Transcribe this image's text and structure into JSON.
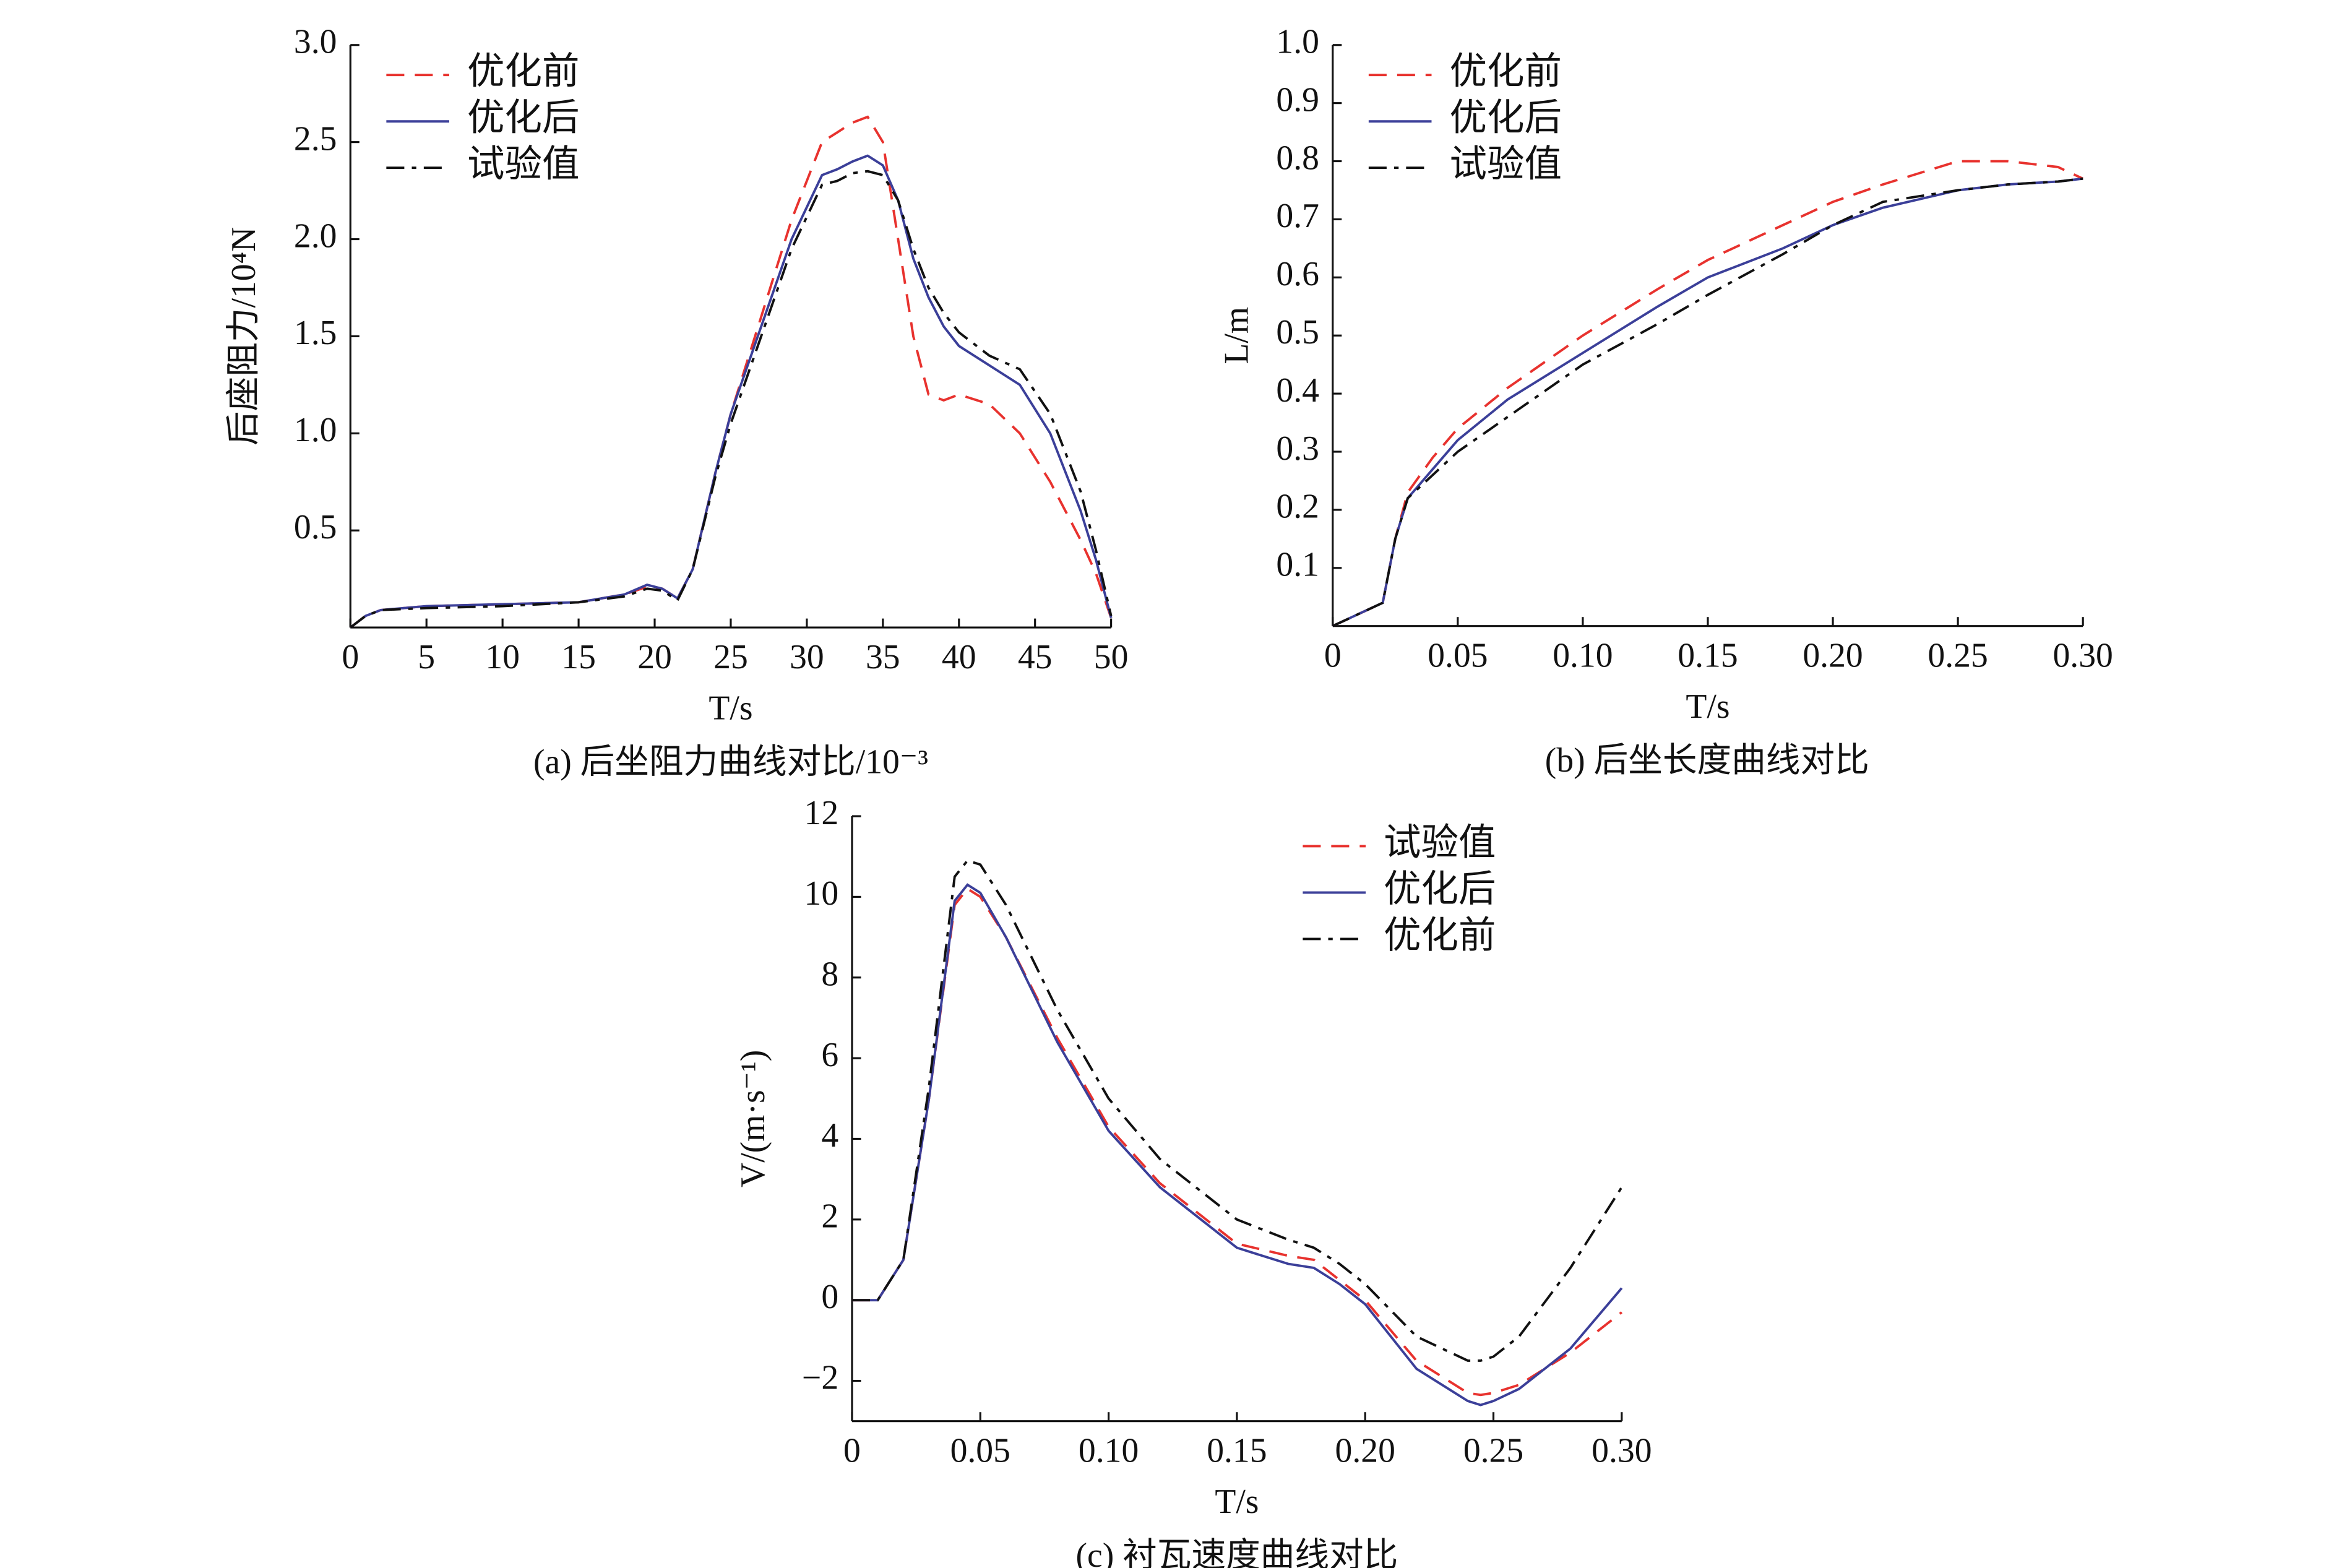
{
  "chart_data": [
    {
      "type": "line",
      "title": "(a) 后坐阻力曲线对比/10⁻³",
      "xlabel": "T/s",
      "ylabel": "后座阻力/10⁴N",
      "xlim": [
        0,
        50
      ],
      "ylim": [
        0,
        3
      ],
      "xticks": [
        0,
        5,
        10,
        15,
        20,
        25,
        30,
        35,
        40,
        45,
        50
      ],
      "yticks": [
        0.5,
        {
          "value": 1,
          "label": "1.0"
        },
        1.5,
        {
          "value": 2,
          "label": "2.0"
        },
        2.5,
        {
          "value": 3,
          "label": "3.0"
        }
      ],
      "legend": "upper left",
      "x": [
        0,
        1,
        2,
        5,
        10,
        15,
        18,
        19.5,
        20.5,
        21.5,
        22.5,
        24,
        25,
        27,
        29,
        31,
        32,
        33,
        34,
        35,
        36,
        37,
        38,
        39,
        40,
        42,
        44,
        46,
        48,
        49,
        50
      ],
      "series": [
        {
          "name": "优化前",
          "color": "#e8322e",
          "dash": "dashed",
          "values": [
            0,
            0.06,
            0.09,
            0.11,
            0.12,
            0.13,
            0.17,
            0.21,
            0.2,
            0.15,
            0.3,
            0.8,
            1.1,
            1.6,
            2.1,
            2.5,
            2.55,
            2.6,
            2.63,
            2.5,
            2.0,
            1.5,
            1.2,
            1.17,
            1.2,
            1.15,
            1.0,
            0.75,
            0.45,
            0.28,
            0.05
          ]
        },
        {
          "name": "优化后",
          "color": "#3b3f99",
          "dash": "solid",
          "values": [
            0,
            0.06,
            0.09,
            0.11,
            0.12,
            0.13,
            0.17,
            0.22,
            0.2,
            0.15,
            0.3,
            0.8,
            1.1,
            1.55,
            2.0,
            2.33,
            2.36,
            2.4,
            2.43,
            2.38,
            2.2,
            1.9,
            1.7,
            1.55,
            1.45,
            1.35,
            1.25,
            1.0,
            0.6,
            0.35,
            0.05
          ]
        },
        {
          "name": "试验值",
          "color": "#111111",
          "dash": "dashdot",
          "values": [
            0,
            0.06,
            0.09,
            0.1,
            0.11,
            0.13,
            0.16,
            0.2,
            0.19,
            0.14,
            0.3,
            0.78,
            1.05,
            1.5,
            1.95,
            2.28,
            2.3,
            2.34,
            2.35,
            2.33,
            2.2,
            1.95,
            1.75,
            1.62,
            1.52,
            1.4,
            1.33,
            1.1,
            0.7,
            0.4,
            0.06
          ]
        }
      ]
    },
    {
      "type": "line",
      "title": "(b) 后坐长度曲线对比",
      "xlabel": "T/s",
      "ylabel": "L/m",
      "xlim": [
        0,
        0.3
      ],
      "ylim": [
        0,
        1
      ],
      "xticks": [
        0,
        0.05,
        {
          "value": 0.1,
          "label": "0.10"
        },
        0.15,
        {
          "value": 0.2,
          "label": "0.20"
        },
        0.25,
        {
          "value": 0.3,
          "label": "0.30"
        }
      ],
      "yticks": [
        0.1,
        0.2,
        0.3,
        0.4,
        0.5,
        0.6,
        0.7,
        0.8,
        0.9,
        {
          "value": 1,
          "label": "1.0"
        }
      ],
      "legend": "upper left",
      "x": [
        0,
        0.01,
        0.02,
        0.025,
        0.03,
        0.04,
        0.05,
        0.07,
        0.1,
        0.13,
        0.15,
        0.18,
        0.2,
        0.22,
        0.25,
        0.27,
        0.29,
        0.3
      ],
      "series": [
        {
          "name": "优化前",
          "color": "#e8322e",
          "dash": "dashed",
          "values": [
            0,
            0.02,
            0.04,
            0.15,
            0.23,
            0.29,
            0.34,
            0.41,
            0.5,
            0.58,
            0.63,
            0.69,
            0.73,
            0.76,
            0.8,
            0.8,
            0.79,
            0.77
          ]
        },
        {
          "name": "优化后",
          "color": "#3b3f99",
          "dash": "solid",
          "values": [
            0,
            0.02,
            0.04,
            0.15,
            0.22,
            0.27,
            0.32,
            0.39,
            0.47,
            0.55,
            0.6,
            0.65,
            0.69,
            0.72,
            0.75,
            0.76,
            0.765,
            0.77
          ]
        },
        {
          "name": "试验值",
          "color": "#111111",
          "dash": "dashdot",
          "values": [
            0,
            0.02,
            0.04,
            0.15,
            0.22,
            0.26,
            0.3,
            0.36,
            0.45,
            0.52,
            0.57,
            0.64,
            0.69,
            0.73,
            0.75,
            0.76,
            0.765,
            0.77
          ]
        }
      ]
    },
    {
      "type": "line",
      "title": "(c) 衬瓦速度曲线对比",
      "xlabel": "T/s",
      "ylabel": "V/(m·s⁻¹)",
      "xlim": [
        0,
        0.3
      ],
      "ylim": [
        -3,
        12
      ],
      "xticks": [
        0,
        0.05,
        {
          "value": 0.1,
          "label": "0.10"
        },
        0.15,
        {
          "value": 0.2,
          "label": "0.20"
        },
        0.25,
        {
          "value": 0.3,
          "label": "0.30"
        }
      ],
      "yticks": [
        {
          "value": -2,
          "label": "−2"
        },
        0,
        2,
        4,
        6,
        8,
        10,
        12
      ],
      "legend": "upper right",
      "x": [
        0,
        0.01,
        0.02,
        0.03,
        0.04,
        0.045,
        0.05,
        0.06,
        0.08,
        0.1,
        0.12,
        0.15,
        0.17,
        0.18,
        0.19,
        0.2,
        0.22,
        0.24,
        0.245,
        0.25,
        0.26,
        0.28,
        0.3
      ],
      "series": [
        {
          "name": "试验值",
          "color": "#e8322e",
          "dash": "dashed",
          "values": [
            0,
            0,
            1,
            5,
            9.8,
            10.2,
            10,
            9,
            6.5,
            4.3,
            2.9,
            1.4,
            1.1,
            1,
            0.5,
            0,
            -1.5,
            -2.3,
            -2.35,
            -2.3,
            -2.1,
            -1.3,
            -0.3
          ]
        },
        {
          "name": "优化后",
          "color": "#3b3f99",
          "dash": "solid",
          "values": [
            0,
            0,
            1,
            5,
            9.9,
            10.3,
            10.1,
            9,
            6.4,
            4.2,
            2.8,
            1.3,
            0.9,
            0.8,
            0.4,
            -0.1,
            -1.7,
            -2.5,
            -2.6,
            -2.5,
            -2.2,
            -1.2,
            0.3
          ]
        },
        {
          "name": "优化前",
          "color": "#111111",
          "dash": "dashdot",
          "values": [
            0,
            0,
            1,
            5.3,
            10.5,
            10.9,
            10.8,
            9.8,
            7.2,
            5,
            3.5,
            2,
            1.5,
            1.3,
            0.9,
            0.4,
            -0.9,
            -1.5,
            -1.5,
            -1.4,
            -0.9,
            0.8,
            2.8
          ]
        }
      ]
    }
  ]
}
